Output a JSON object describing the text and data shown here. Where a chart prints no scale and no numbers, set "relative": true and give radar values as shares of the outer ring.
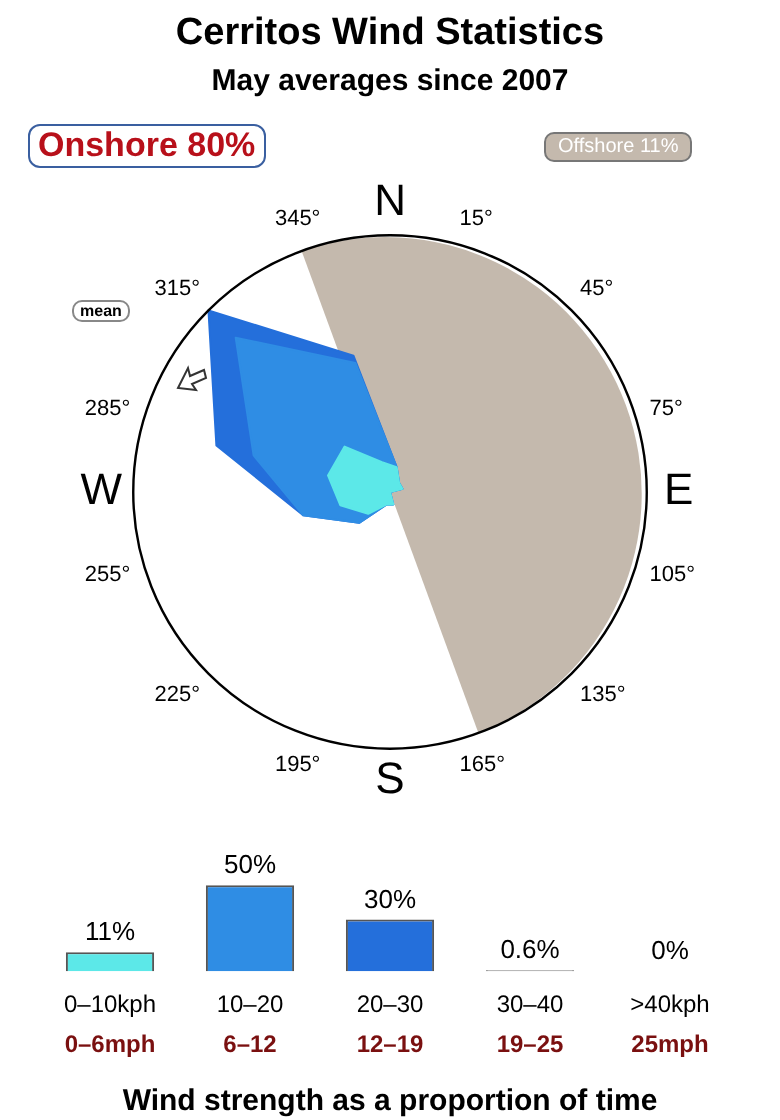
{
  "chart_data": [
    {
      "type": "radar",
      "title": "Cerritos Wind Statistics",
      "subtitle": "May averages since 2007",
      "relative": true,
      "categories": [
        "15°",
        "45°",
        "75°",
        "105°",
        "135°",
        "165°",
        "195°",
        "225°",
        "255°",
        "285°",
        "315°",
        "345°"
      ],
      "series": [
        {
          "color": "#5ce8e8",
          "values": [
            0.1,
            0.05,
            0.05,
            0,
            0,
            0.05,
            0.05,
            0.12,
            0.2,
            0.25,
            0.25,
            0.12
          ]
        },
        {
          "color": "#2f8de4",
          "values": [
            0.1,
            0.05,
            0.05,
            0,
            0,
            0.05,
            0.05,
            0.17,
            0.35,
            0.55,
            0.85,
            0.52
          ]
        },
        {
          "color": "#246fdb",
          "values": [
            0.1,
            0.05,
            0.05,
            0,
            0,
            0.05,
            0.05,
            0.17,
            0.35,
            0.7,
            1,
            0.55
          ]
        }
      ],
      "annotations": [
        "Onshore 80%",
        "Offshore 11%",
        "mean",
        "N",
        "E",
        "S",
        "W"
      ]
    },
    {
      "type": "bar",
      "xlabel": "Wind strength as a proportion of time",
      "categories": [
        "0–10kph",
        "10–20",
        "20–30",
        "30–40",
        ">40kph"
      ],
      "values": [
        11,
        50,
        30,
        0.6,
        0
      ],
      "colors": [
        "#5ce8e8",
        "#2f8de4",
        "#246fdb",
        "#999999",
        "#999999"
      ],
      "value_labels": [
        "11%",
        "50%",
        "30%",
        "0.6%",
        "0%"
      ],
      "annotations": [
        "0–6mph",
        "6–12",
        "12–19",
        "19–25",
        "25mph"
      ]
    }
  ]
}
